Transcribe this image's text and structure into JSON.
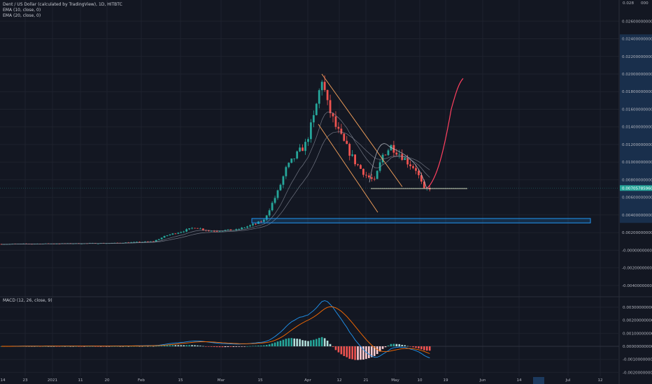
{
  "legend": {
    "symbol": "Dent / US Dollar (calculated by TradingView), 1D, HITBTC",
    "ema10": "EMA (10, close, 0)",
    "ema20": "EMA (20, close, 0)",
    "macd": "MACD (12, 26, close, 9)"
  },
  "price_axis": {
    "top_label": "0.028",
    "top_label_suffix": "000",
    "ticks": [
      "0.02600000000",
      "0.02400000000",
      "0.02200000000",
      "0.02000000000",
      "0.01800000000",
      "0.01600000000",
      "0.01400000000",
      "0.01200000000",
      "0.01000000000",
      "0.00800000000",
      "0.00600000000",
      "0.00400000000",
      "0.00200000000",
      "-0.00000000000",
      "-0.00200000000",
      "-0.00400000000"
    ],
    "current_price": "0.00705785960"
  },
  "macd_axis": {
    "ticks": [
      "0.00300000000",
      "0.00200000000",
      "0.00100000000",
      "0.00000000000",
      "-0.00100000000",
      "-0.00200000000"
    ]
  },
  "time_axis": {
    "ticks": [
      "14",
      "23",
      "2021",
      "11",
      "20",
      "Feb",
      "15",
      "Mar",
      "15",
      "Apr",
      "12",
      "21",
      "May",
      "10",
      "19",
      "Jun",
      "14",
      "Jul",
      "12"
    ]
  },
  "colors": {
    "background": "#131722",
    "grid": "#1e222d",
    "up": "#26a69a",
    "down": "#ef5350",
    "ema": "#8a8f9c",
    "trendline": "#f7a35c",
    "horizontal_line": "#e8e4c8",
    "support_box": "#2196f3",
    "projection": "#ff4060",
    "macd_line": "#2196f3",
    "signal_line": "#ff6d00",
    "axis_highlight": "#1c3a5e"
  },
  "chart_data": {
    "type": "candlestick",
    "price_axis": {
      "range": [
        -0.0052,
        0.0284
      ]
    },
    "x_axis": {
      "unit": "trading days",
      "start_date": "2020-12-14",
      "end_date": "2021-07-20"
    },
    "key_prices": {
      "current": 0.0070578596,
      "support_line": 0.007,
      "support_zone": [
        0.0031,
        0.0036
      ],
      "peak": 0.0205
    },
    "macd": {
      "fast": 12,
      "slow": 26,
      "signal": 9,
      "range": [
        -0.0023,
        0.0038
      ],
      "peak_macd": 0.0035,
      "peak_signal": 0.003
    },
    "grid": true
  }
}
